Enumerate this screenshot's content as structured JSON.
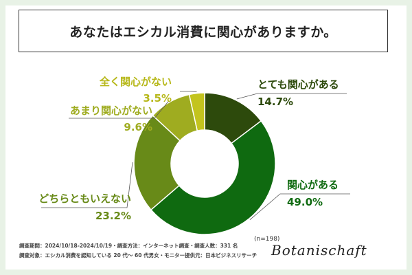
{
  "title": "あなたはエシカル消費に関心がありますか。",
  "n_note": "(n=198)",
  "footer": {
    "line1": "調査期間：2024/10/18-2024/10/19・調査方法：インターネット調査・調査人数：331 名",
    "line2": "調査対象：エシカル消費を認知している 20 代〜 60 代男女・モニター提供元：日本ビジネスリサーチ"
  },
  "logo": "Botanischaft",
  "chart_data": {
    "type": "pie",
    "donut": true,
    "slices": [
      {
        "label": "とても関心がある",
        "value": 14.7,
        "value_label": "14.7%",
        "color": "#2d4a0c"
      },
      {
        "label": "関心がある",
        "value": 49.0,
        "value_label": "49.0%",
        "color": "#0f6a10"
      },
      {
        "label": "どちらともいえない",
        "value": 23.2,
        "value_label": "23.2%",
        "color": "#688a18"
      },
      {
        "label": "あまり関心がない",
        "value": 9.6,
        "value_label": "9.6%",
        "color": "#9fac20"
      },
      {
        "label": "全く関心がない",
        "value": 3.5,
        "value_label": "3.5%",
        "color": "#c3c41e"
      }
    ],
    "label_colors": [
      "#2d4a0c",
      "#0f6a10",
      "#688a18",
      "#9fac20",
      "#b7b81a"
    ]
  }
}
